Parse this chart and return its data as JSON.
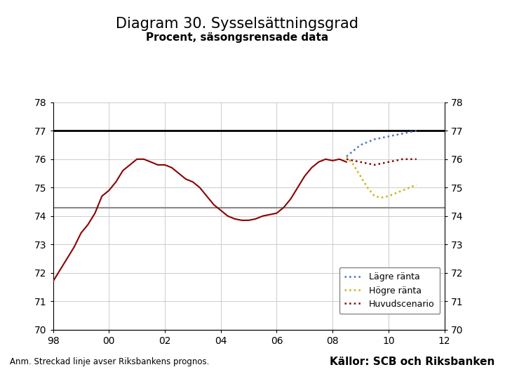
{
  "title": "Diagram 30. Sysselsättningsgrad",
  "subtitle": "Procent, säsongsrensade data",
  "footnote_left": "Anm. Streckad linje avser Riksbankens prognos.",
  "footnote_right": "Källor: SCB och Riksbanken",
  "xlim": [
    1998,
    2012
  ],
  "ylim": [
    70,
    78
  ],
  "xticks": [
    1998,
    2000,
    2002,
    2004,
    2006,
    2008,
    2010,
    2012
  ],
  "xticklabels": [
    "98",
    "00",
    "02",
    "04",
    "06",
    "08",
    "10",
    "12"
  ],
  "yticks": [
    70,
    71,
    72,
    73,
    74,
    75,
    76,
    77,
    78
  ],
  "hline1_y": 77.0,
  "hline2_y": 74.3,
  "main_color": "#8B0000",
  "lagre_color": "#4472C4",
  "hogre_color": "#C8B400",
  "huvud_color": "#8B0000",
  "background_color": "#FFFFFF",
  "footer_bar_color": "#1F4E8C",
  "main_x": [
    1998.0,
    1998.25,
    1998.5,
    1998.75,
    1999.0,
    1999.25,
    1999.5,
    1999.75,
    2000.0,
    2000.25,
    2000.5,
    2000.75,
    2001.0,
    2001.25,
    2001.5,
    2001.75,
    2002.0,
    2002.25,
    2002.5,
    2002.75,
    2003.0,
    2003.25,
    2003.5,
    2003.75,
    2004.0,
    2004.25,
    2004.5,
    2004.75,
    2005.0,
    2005.25,
    2005.5,
    2005.75,
    2006.0,
    2006.25,
    2006.5,
    2006.75,
    2007.0,
    2007.25,
    2007.5,
    2007.75,
    2008.0,
    2008.25,
    2008.5
  ],
  "main_y": [
    71.7,
    72.1,
    72.5,
    72.9,
    73.4,
    73.7,
    74.1,
    74.7,
    74.9,
    75.2,
    75.6,
    75.8,
    76.0,
    76.0,
    75.9,
    75.8,
    75.8,
    75.7,
    75.5,
    75.3,
    75.2,
    75.0,
    74.7,
    74.4,
    74.2,
    74.0,
    73.9,
    73.85,
    73.85,
    73.9,
    74.0,
    74.05,
    74.1,
    74.3,
    74.6,
    75.0,
    75.4,
    75.7,
    75.9,
    76.0,
    75.95,
    76.0,
    75.9
  ],
  "lagre_x": [
    2008.5,
    2008.75,
    2009.0,
    2009.25,
    2009.5,
    2009.75,
    2010.0,
    2010.25,
    2010.5,
    2010.75,
    2011.0
  ],
  "lagre_y": [
    76.1,
    76.3,
    76.5,
    76.6,
    76.7,
    76.75,
    76.8,
    76.85,
    76.9,
    76.95,
    77.0
  ],
  "hogre_x": [
    2008.5,
    2008.75,
    2009.0,
    2009.25,
    2009.5,
    2009.75,
    2010.0,
    2010.25,
    2010.5,
    2010.75,
    2011.0
  ],
  "hogre_y": [
    76.1,
    75.8,
    75.4,
    75.0,
    74.7,
    74.65,
    74.7,
    74.8,
    74.9,
    75.0,
    75.1
  ],
  "huvud_x": [
    2008.5,
    2008.75,
    2009.0,
    2009.25,
    2009.5,
    2009.75,
    2010.0,
    2010.25,
    2010.5,
    2010.75,
    2011.0
  ],
  "huvud_y": [
    76.0,
    75.95,
    75.9,
    75.85,
    75.8,
    75.85,
    75.9,
    75.95,
    76.0,
    76.0,
    76.0
  ],
  "legend_labels": [
    "Lägre ränta",
    "Högre ränta",
    "Huvudscenario"
  ],
  "title_fontsize": 15,
  "subtitle_fontsize": 11,
  "tick_fontsize": 10
}
